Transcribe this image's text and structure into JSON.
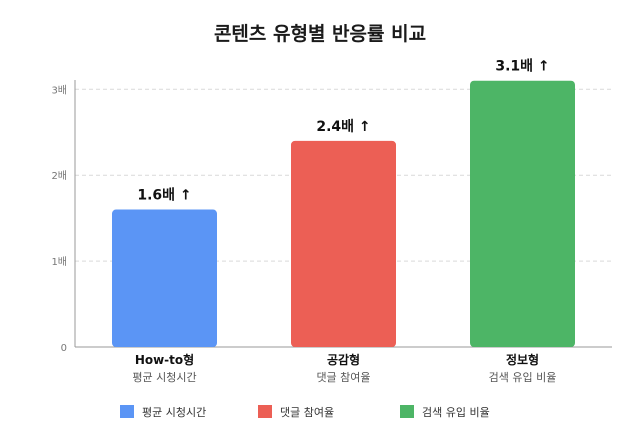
{
  "chart_data": {
    "type": "bar",
    "title": "콘텐츠 유형별 반응률 비교",
    "categories": [
      "How-to형",
      "공감형",
      "정보형"
    ],
    "category_sublabels": [
      "평균 시청시간",
      "댓글 참여율",
      "검색 유입 비율"
    ],
    "values": [
      1.6,
      2.4,
      3.1
    ],
    "value_labels": [
      "1.6배 ↑",
      "2.4배 ↑",
      "3.1배 ↑"
    ],
    "bar_colors": [
      "#5b95f5",
      "#ec5f55",
      "#4db566"
    ],
    "ylim": [
      0,
      3.05
    ],
    "yticks": [
      0,
      1,
      2,
      3
    ],
    "ytick_labels": [
      "0",
      "1배",
      "2배",
      "3배"
    ],
    "grid": true,
    "legend_position": "bottom",
    "legend": [
      {
        "label": "평균 시청시간",
        "color": "#5b95f5"
      },
      {
        "label": "댓글 참여율",
        "color": "#ec5f55"
      },
      {
        "label": "검색 유입 비율",
        "color": "#4db566"
      }
    ]
  }
}
